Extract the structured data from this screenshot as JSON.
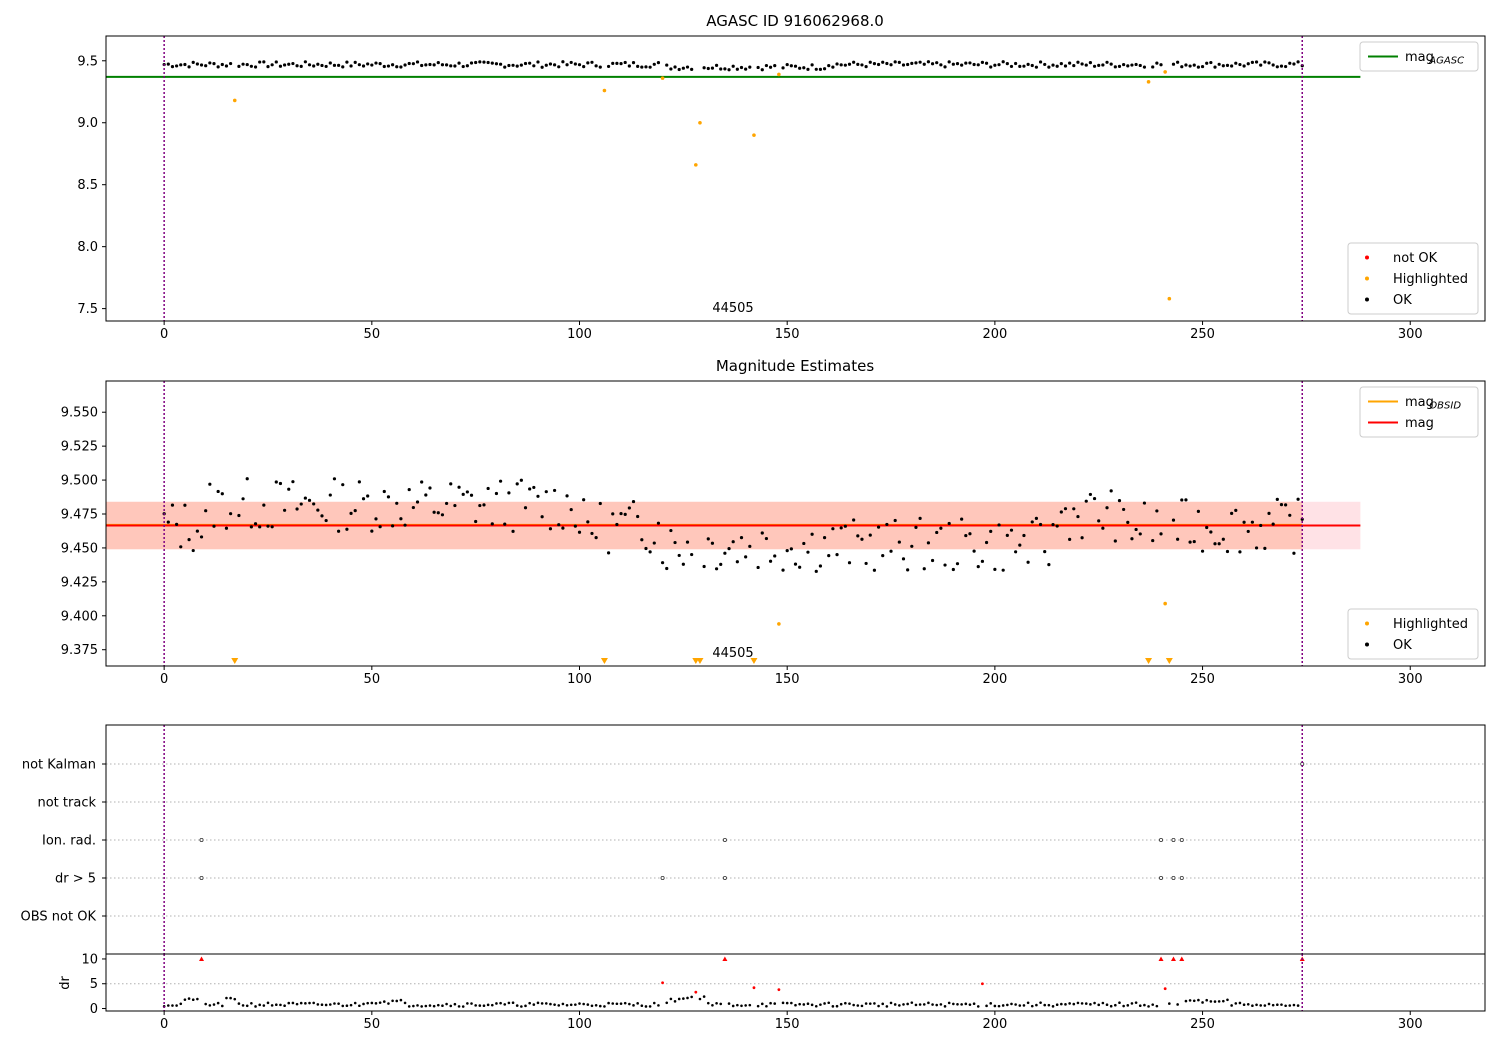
{
  "chart_data": [
    {
      "type": "scatter",
      "title": "AGASC ID 916062968.0",
      "xlim": [
        -14,
        318
      ],
      "ylim": [
        7.4,
        9.7
      ],
      "xticks": [
        0,
        50,
        100,
        150,
        200,
        250,
        300
      ],
      "yticks": [
        7.5,
        8.0,
        8.5,
        9.0,
        9.5
      ],
      "ytick_labels": [
        "7.5",
        "8.0",
        "8.5",
        "9.0",
        "9.5"
      ],
      "vlines": [
        0,
        274
      ],
      "annotation": {
        "text": "44505",
        "x": 137,
        "y": 7.5
      },
      "reference_lines": [
        {
          "name": "mag_AGASC",
          "y": 9.37,
          "x_end": 288,
          "color": "#008000"
        }
      ],
      "legends": [
        {
          "position": "top-right",
          "entries": [
            {
              "label": "mag",
              "sub": "AGASC",
              "kind": "line",
              "color": "#008000"
            }
          ]
        },
        {
          "position": "bottom-right",
          "entries": [
            {
              "label": "not OK",
              "kind": "dot",
              "color": "#ff0000"
            },
            {
              "label": "Highlighted",
              "kind": "dot",
              "color": "#ffa500"
            },
            {
              "label": "OK",
              "kind": "dot",
              "color": "#000000"
            }
          ]
        }
      ],
      "series": [
        {
          "name": "Highlighted",
          "color": "#ffa500",
          "x": [
            17,
            106,
            120,
            128,
            129,
            142,
            148,
            237,
            241,
            242
          ],
          "y": [
            9.18,
            9.26,
            9.36,
            8.66,
            9.0,
            8.9,
            9.39,
            9.33,
            9.41,
            7.58
          ]
        },
        {
          "name": "OK",
          "color": "#000000",
          "generated": true
        }
      ]
    },
    {
      "type": "scatter",
      "title": "Magnitude Estimates",
      "xlim": [
        -14,
        318
      ],
      "ylim": [
        9.363,
        9.573
      ],
      "xticks": [
        0,
        50,
        100,
        150,
        200,
        250,
        300
      ],
      "yticks": [
        9.375,
        9.4,
        9.425,
        9.45,
        9.475,
        9.5,
        9.525,
        9.55
      ],
      "ytick_labels": [
        "9.375",
        "9.400",
        "9.425",
        "9.450",
        "9.475",
        "9.500",
        "9.525",
        "9.550"
      ],
      "vlines": [
        0,
        274
      ],
      "annotation": {
        "text": "44505",
        "x": 137,
        "y": 9.37
      },
      "bands": [
        {
          "y0": 9.449,
          "y1": 9.484,
          "x0": -14,
          "x1": 288,
          "color": "#ffb6c1"
        },
        {
          "y0": 9.449,
          "y1": 9.484,
          "x0": -14,
          "x1": 274,
          "color": "#ffa07a"
        }
      ],
      "reference_lines": [
        {
          "name": "mag_OBSID",
          "y": 9.467,
          "x_end": 274,
          "color": "#ffa500"
        },
        {
          "name": "mag",
          "y": 9.4665,
          "x_end": 288,
          "color": "#ff0000"
        }
      ],
      "legends": [
        {
          "position": "top-right",
          "entries": [
            {
              "label": "mag",
              "sub": "OBSID",
              "kind": "line",
              "color": "#ffa500"
            },
            {
              "label": "mag",
              "kind": "line",
              "color": "#ff0000"
            }
          ]
        },
        {
          "position": "bottom-right",
          "entries": [
            {
              "label": "Highlighted",
              "kind": "dot",
              "color": "#ffa500"
            },
            {
              "label": "OK",
              "kind": "dot",
              "color": "#000000"
            }
          ]
        }
      ],
      "series": [
        {
          "name": "Highlighted",
          "color": "#ffa500",
          "x": [
            148,
            241
          ],
          "y": [
            9.394,
            9.409
          ]
        },
        {
          "name": "Highlighted",
          "kind": "off-scale",
          "marker": "triangle-down",
          "color": "#ffa500",
          "x": [
            17,
            106,
            128,
            129,
            142,
            237,
            242
          ]
        },
        {
          "name": "OK",
          "color": "#000000",
          "generated": true
        }
      ]
    },
    {
      "type": "scatter",
      "xlim": [
        -14,
        318
      ],
      "categories": [
        "not Kalman",
        "not track",
        "Ion. rad.",
        "dr > 5",
        "OBS not OK"
      ],
      "vlines": [
        0,
        274
      ],
      "series": [
        {
          "name": "not Kalman",
          "x": [
            274
          ]
        },
        {
          "name": "not track",
          "x": []
        },
        {
          "name": "Ion. rad.",
          "x": [
            9,
            135,
            240,
            243,
            245
          ]
        },
        {
          "name": "dr > 5",
          "x": [
            9,
            120,
            135,
            240,
            243,
            245
          ]
        },
        {
          "name": "OBS not OK",
          "x": []
        }
      ]
    },
    {
      "type": "scatter",
      "xlim": [
        -14,
        318
      ],
      "ylim": [
        -0.5,
        11
      ],
      "xticks": [
        0,
        50,
        100,
        150,
        200,
        250,
        300
      ],
      "yticks": [
        0,
        5,
        10
      ],
      "ytick_labels": [
        "0",
        "5",
        "10"
      ],
      "ylabel": "dr",
      "vlines": [
        0,
        274
      ],
      "series": [
        {
          "name": "dr > 5",
          "color": "#ff0000",
          "clipped_at": 10,
          "x": [
            9,
            120,
            128,
            135,
            142,
            148,
            197,
            240,
            241,
            243,
            245,
            274
          ],
          "y": [
            10,
            5.2,
            3.3,
            10,
            4.2,
            3.8,
            5.0,
            10,
            4.0,
            10,
            10,
            10
          ]
        },
        {
          "name": "OK",
          "color": "#000000",
          "generated": true
        }
      ]
    }
  ],
  "colors": {
    "frame": "#000000",
    "vline": "#800080",
    "grid_dotted": "#b0b0b0"
  }
}
